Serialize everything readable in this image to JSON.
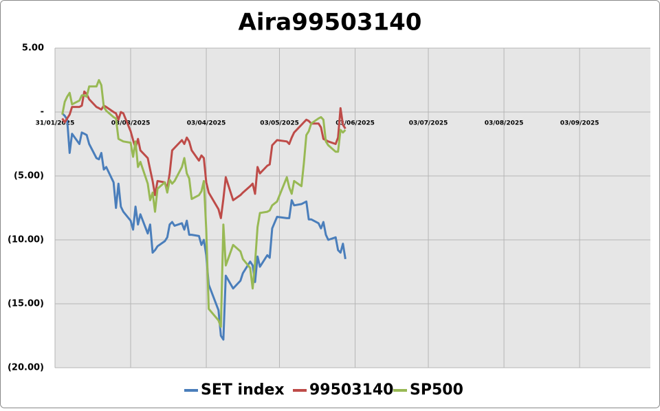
{
  "chart_data": {
    "type": "line",
    "title": "Aira99503140",
    "x": [
      "2025-02-03",
      "2025-02-04",
      "2025-02-05",
      "2025-02-06",
      "2025-02-07",
      "2025-02-10",
      "2025-02-11",
      "2025-02-12",
      "2025-02-13",
      "2025-02-14",
      "2025-02-17",
      "2025-02-18",
      "2025-02-19",
      "2025-02-20",
      "2025-02-21",
      "2025-02-24",
      "2025-02-25",
      "2025-02-26",
      "2025-02-27",
      "2025-02-28",
      "2025-03-03",
      "2025-03-04",
      "2025-03-05",
      "2025-03-06",
      "2025-03-07",
      "2025-03-10",
      "2025-03-11",
      "2025-03-12",
      "2025-03-13",
      "2025-03-14",
      "2025-03-17",
      "2025-03-18",
      "2025-03-19",
      "2025-03-20",
      "2025-03-21",
      "2025-03-24",
      "2025-03-25",
      "2025-03-26",
      "2025-03-27",
      "2025-03-28",
      "2025-03-31",
      "2025-04-01",
      "2025-04-02",
      "2025-04-03",
      "2025-04-04",
      "2025-04-08",
      "2025-04-09",
      "2025-04-10",
      "2025-04-11",
      "2025-04-14",
      "2025-04-17",
      "2025-04-18",
      "2025-04-21",
      "2025-04-22",
      "2025-04-23",
      "2025-04-24",
      "2025-04-25",
      "2025-04-28",
      "2025-04-29",
      "2025-04-30",
      "2025-05-02",
      "2025-05-06",
      "2025-05-07",
      "2025-05-08",
      "2025-05-09",
      "2025-05-12",
      "2025-05-13",
      "2025-05-14",
      "2025-05-15",
      "2025-05-16",
      "2025-05-19",
      "2025-05-20",
      "2025-05-21",
      "2025-05-22",
      "2025-05-23",
      "2025-05-26",
      "2025-05-27",
      "2025-05-28",
      "2025-05-29",
      "2025-05-30"
    ],
    "series": [
      {
        "name": "SET index",
        "color": "#4a7ebb",
        "values": [
          -0.1,
          -0.3,
          -0.6,
          -3.2,
          -1.7,
          -2.5,
          -1.6,
          -1.7,
          -1.8,
          -2.5,
          -3.6,
          -3.7,
          -3.2,
          -4.5,
          -4.3,
          -5.5,
          -7.5,
          -5.6,
          -7.4,
          -7.8,
          -8.5,
          -9.2,
          -7.4,
          -8.8,
          -8.0,
          -9.5,
          -8.8,
          -11.0,
          -10.8,
          -10.5,
          -10.1,
          -9.8,
          -8.8,
          -8.6,
          -8.9,
          -8.7,
          -9.2,
          -8.5,
          -9.6,
          -9.6,
          -9.7,
          -10.4,
          -10.0,
          -11.2,
          -13.5,
          -15.5,
          -17.5,
          -17.8,
          -12.8,
          -13.8,
          -13.2,
          -12.6,
          -11.7,
          -12.0,
          -13.3,
          -11.3,
          -12.1,
          -11.2,
          -11.4,
          -9.1,
          -8.2,
          -8.3,
          -8.3,
          -6.9,
          -7.3,
          -7.2,
          -7.1,
          -7.0,
          -8.4,
          -8.4,
          -8.7,
          -9.1,
          -8.6,
          -9.6,
          -10.0,
          -9.8,
          -10.8,
          -11.0,
          -10.3,
          -11.5
        ]
      },
      {
        "name": "99503140",
        "color": "#be4b48",
        "values": [
          -0.5,
          -0.8,
          -0.5,
          -0.2,
          0.4,
          0.4,
          0.5,
          1.6,
          1.4,
          1.0,
          0.4,
          0.3,
          0.2,
          0.5,
          0.4,
          0.0,
          -0.1,
          -0.6,
          0.0,
          -0.1,
          -1.5,
          -2.2,
          -2.8,
          -2.1,
          -3.0,
          -3.6,
          -4.5,
          -5.4,
          -6.5,
          -5.4,
          -5.5,
          -6.0,
          -4.8,
          -3.0,
          -2.8,
          -2.2,
          -2.5,
          -2.0,
          -2.3,
          -3.0,
          -3.8,
          -3.4,
          -3.6,
          -5.5,
          -6.3,
          -7.6,
          -8.3,
          -6.8,
          -5.1,
          -6.9,
          -6.5,
          -6.3,
          -5.8,
          -5.6,
          -6.4,
          -4.3,
          -4.8,
          -4.2,
          -4.1,
          -2.6,
          -2.2,
          -2.3,
          -2.5,
          -2.0,
          -1.6,
          -1.0,
          -0.8,
          -0.6,
          -0.7,
          -0.9,
          -0.9,
          -1.2,
          -2.1,
          -2.2,
          -2.3,
          -2.5,
          -2.0,
          0.3,
          -1.0,
          -1.3
        ]
      },
      {
        "name": "SP500",
        "color": "#98b954",
        "values": [
          -0.2,
          0.8,
          1.2,
          1.5,
          0.6,
          0.9,
          1.3,
          1.3,
          1.2,
          2.0,
          2.0,
          2.5,
          2.1,
          0.4,
          0.1,
          -0.4,
          -0.5,
          -2.1,
          -2.2,
          -2.3,
          -2.4,
          -3.5,
          -2.3,
          -4.3,
          -3.9,
          -5.6,
          -6.9,
          -6.3,
          -7.8,
          -6.0,
          -5.5,
          -6.3,
          -5.3,
          -5.6,
          -5.4,
          -4.3,
          -3.6,
          -4.8,
          -5.2,
          -6.8,
          -6.5,
          -6.2,
          -5.4,
          -9.2,
          -15.4,
          -16.3,
          -16.8,
          -8.8,
          -12.0,
          -10.4,
          -10.9,
          -11.5,
          -12.2,
          -13.8,
          -11.8,
          -9.0,
          -7.9,
          -7.8,
          -7.7,
          -7.3,
          -7.0,
          -5.1,
          -5.9,
          -6.4,
          -5.4,
          -5.8,
          -4.0,
          -1.8,
          -1.5,
          -0.9,
          -0.5,
          -0.4,
          -0.6,
          -2.3,
          -2.6,
          -3.1,
          -3.1,
          -1.4,
          -1.6,
          -1.4
        ]
      }
    ],
    "xlim": [
      "2025-01-31",
      "2025-10-02"
    ],
    "xticks": [
      {
        "value": "2025-01-31",
        "label": "31/01/2025"
      },
      {
        "value": "2025-03-03",
        "label": "03/03/2025"
      },
      {
        "value": "2025-04-03",
        "label": "03/04/2025"
      },
      {
        "value": "2025-05-03",
        "label": "03/05/2025"
      },
      {
        "value": "2025-06-03",
        "label": "03/06/2025"
      },
      {
        "value": "2025-07-03",
        "label": "03/07/2025"
      },
      {
        "value": "2025-08-03",
        "label": "03/08/2025"
      },
      {
        "value": "2025-09-03",
        "label": "03/09/2025"
      }
    ],
    "ylim": [
      -20,
      5
    ],
    "yticks": [
      {
        "value": 5,
        "label": "5.00"
      },
      {
        "value": 0,
        "label": "-"
      },
      {
        "value": -5,
        "label": "(5.00)"
      },
      {
        "value": -10,
        "label": "(10.00)"
      },
      {
        "value": -15,
        "label": "(15.00)"
      },
      {
        "value": -20,
        "label": "(20.00)"
      }
    ],
    "grid": true,
    "legend": "bottom"
  }
}
